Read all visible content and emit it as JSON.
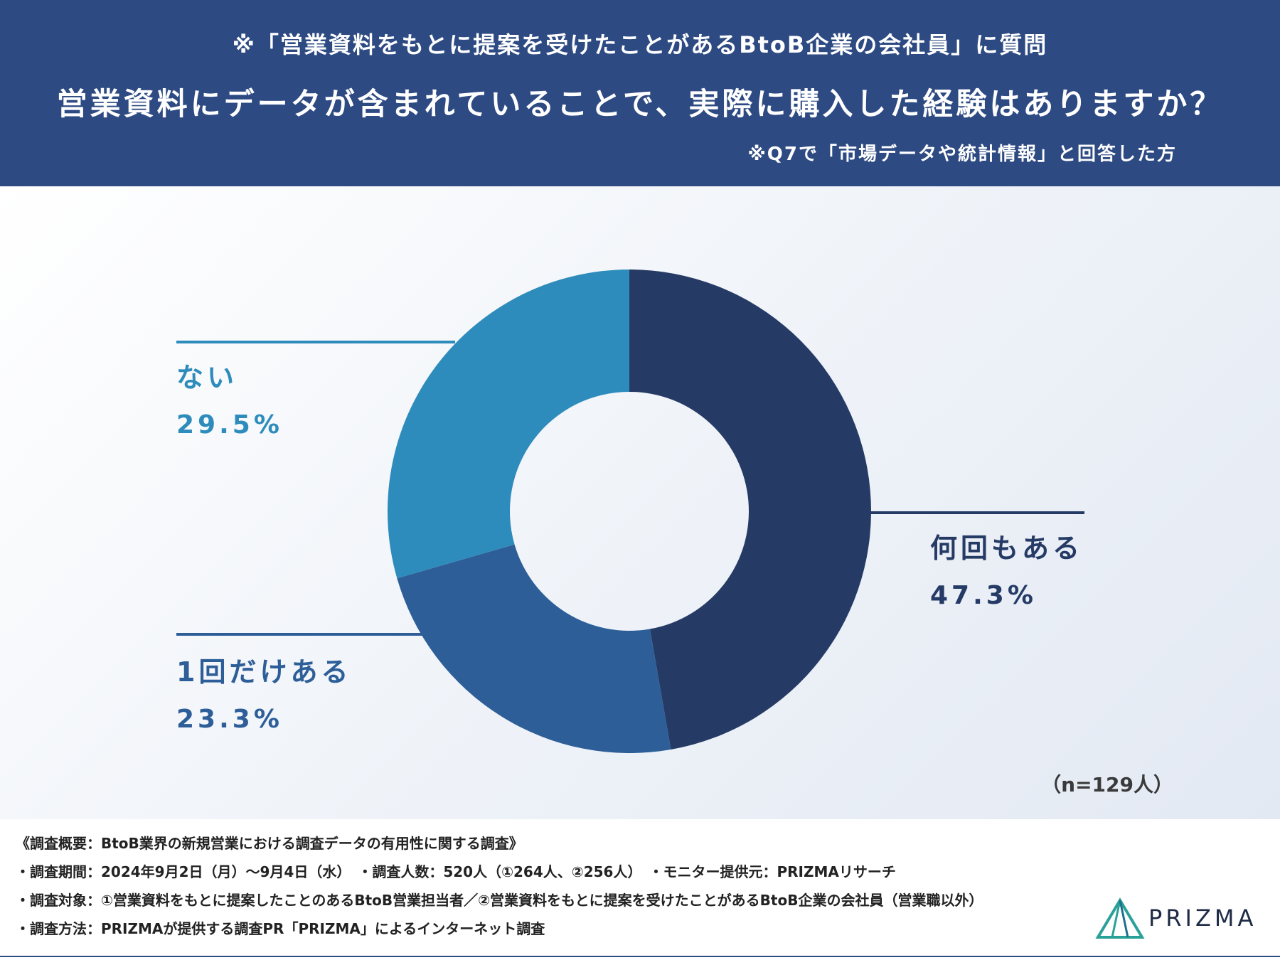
{
  "header": {
    "subtitle": "※「営業資料をもとに提案を受けたことがあるBtoB企業の会社員」に質問",
    "title": "営業資料にデータが含まれていることで、実際に購入した経験はありますか？",
    "note": "※Q7で「市場データや統計情報」と回答した方"
  },
  "chart_data": {
    "type": "pie",
    "variant": "donut",
    "categories": [
      "何回もある",
      "1回だけある",
      "ない"
    ],
    "values": [
      47.3,
      23.3,
      29.5
    ],
    "value_labels": [
      "47.3%",
      "23.3%",
      "29.5%"
    ],
    "colors": [
      "#253b66",
      "#2d5e98",
      "#2e8cbc"
    ],
    "start": "12 o'clock, clockwise",
    "sample_note": "（n=129人）"
  },
  "footer": {
    "overview": "《調査概要：BtoB業界の新規営業における調査データの有用性に関する調査》",
    "period": "・調査期間：2024年9月2日（月）〜9月4日（水）　・調査人数：520人（①264人、②256人）　・モニター提供元：PRIZMAリサーチ",
    "target": "・調査対象：①営業資料をもとに提案したことのあるBtoB営業担当者／②営業資料をもとに提案を受けたことがあるBtoB企業の会社員（営業職以外）",
    "method": "・調査方法：PRIZMAが提供する調査PR「PRIZMA」によるインターネット調査"
  },
  "logo": {
    "text": "PRIZMA",
    "icon": "prism-triangle-icon",
    "color": "#1f2b45",
    "accent": "#2aa198"
  }
}
